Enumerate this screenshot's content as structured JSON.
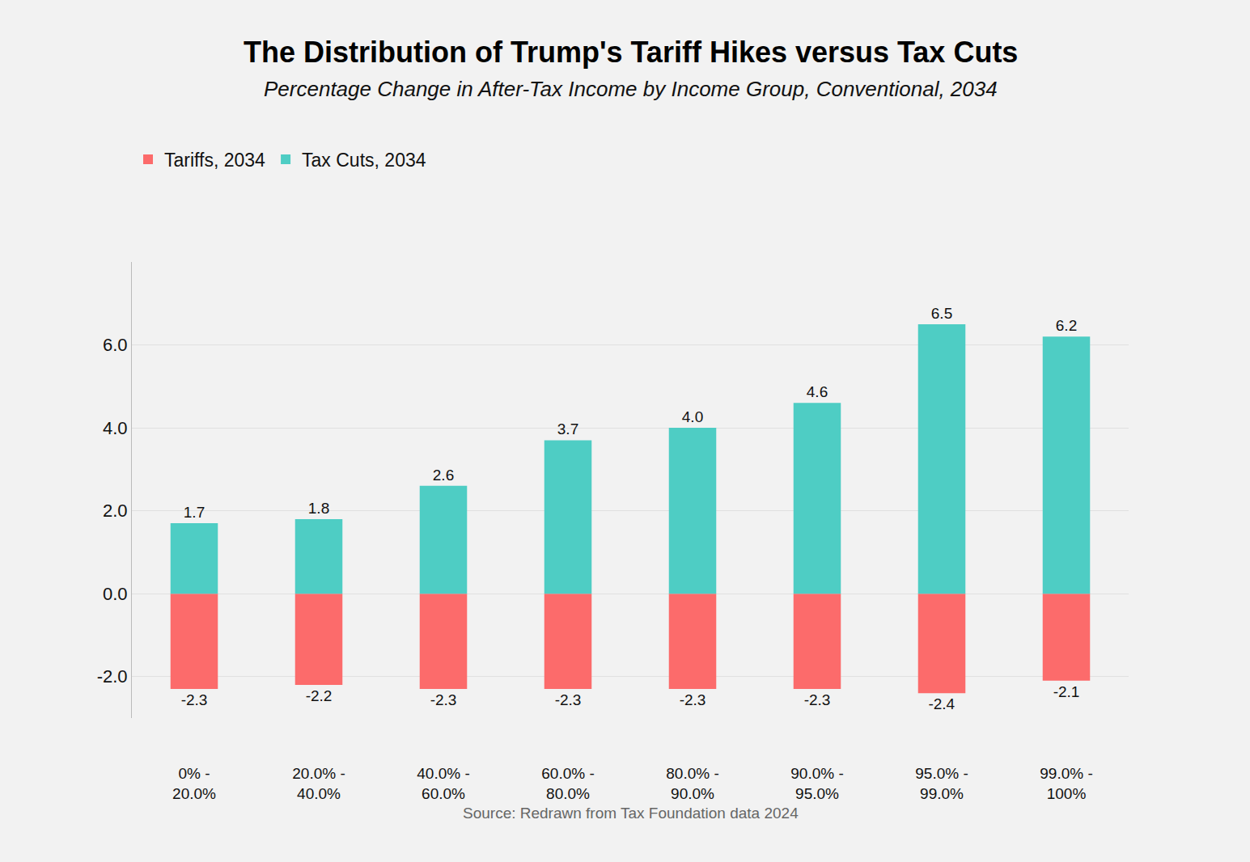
{
  "chart_data": {
    "type": "bar",
    "title": "The Distribution of Trump's Tariff Hikes versus Tax Cuts",
    "subtitle": "Percentage Change in After-Tax Income by Income Group, Conventional, 2034",
    "source": "Source: Redrawn from Tax Foundation data 2024",
    "categories": [
      "0% - 20.0%",
      "20.0% - 40.0%",
      "40.0% - 60.0%",
      "60.0% - 80.0%",
      "80.0% - 90.0%",
      "90.0% - 95.0%",
      "95.0% - 99.0%",
      "99.0% - 100%"
    ],
    "series": [
      {
        "name": "Tariffs, 2034",
        "color": "#fc6b6b",
        "values": [
          -2.3,
          -2.2,
          -2.3,
          -2.3,
          -2.3,
          -2.3,
          -2.4,
          -2.1
        ],
        "value_labels": [
          "-2.3",
          "-2.2",
          "-2.3",
          "-2.3",
          "-2.3",
          "-2.3",
          "-2.4",
          "-2.1"
        ]
      },
      {
        "name": "Tax Cuts, 2034",
        "color": "#4ecdc4",
        "values": [
          1.7,
          1.8,
          2.6,
          3.7,
          4.0,
          4.6,
          6.5,
          6.2
        ],
        "value_labels": [
          "1.7",
          "1.8",
          "2.6",
          "3.7",
          "4.0",
          "4.6",
          "6.5",
          "6.2"
        ]
      }
    ],
    "ylim": [
      -3,
      8
    ],
    "yticks": [
      {
        "value": -2,
        "label": "-2.0"
      },
      {
        "value": 0,
        "label": "0.0"
      },
      {
        "value": 2,
        "label": "2.0"
      },
      {
        "value": 4,
        "label": "4.0"
      },
      {
        "value": 6,
        "label": "6.0"
      }
    ],
    "stacked": true,
    "grid": true,
    "legend": "top left",
    "data_labels": true
  }
}
